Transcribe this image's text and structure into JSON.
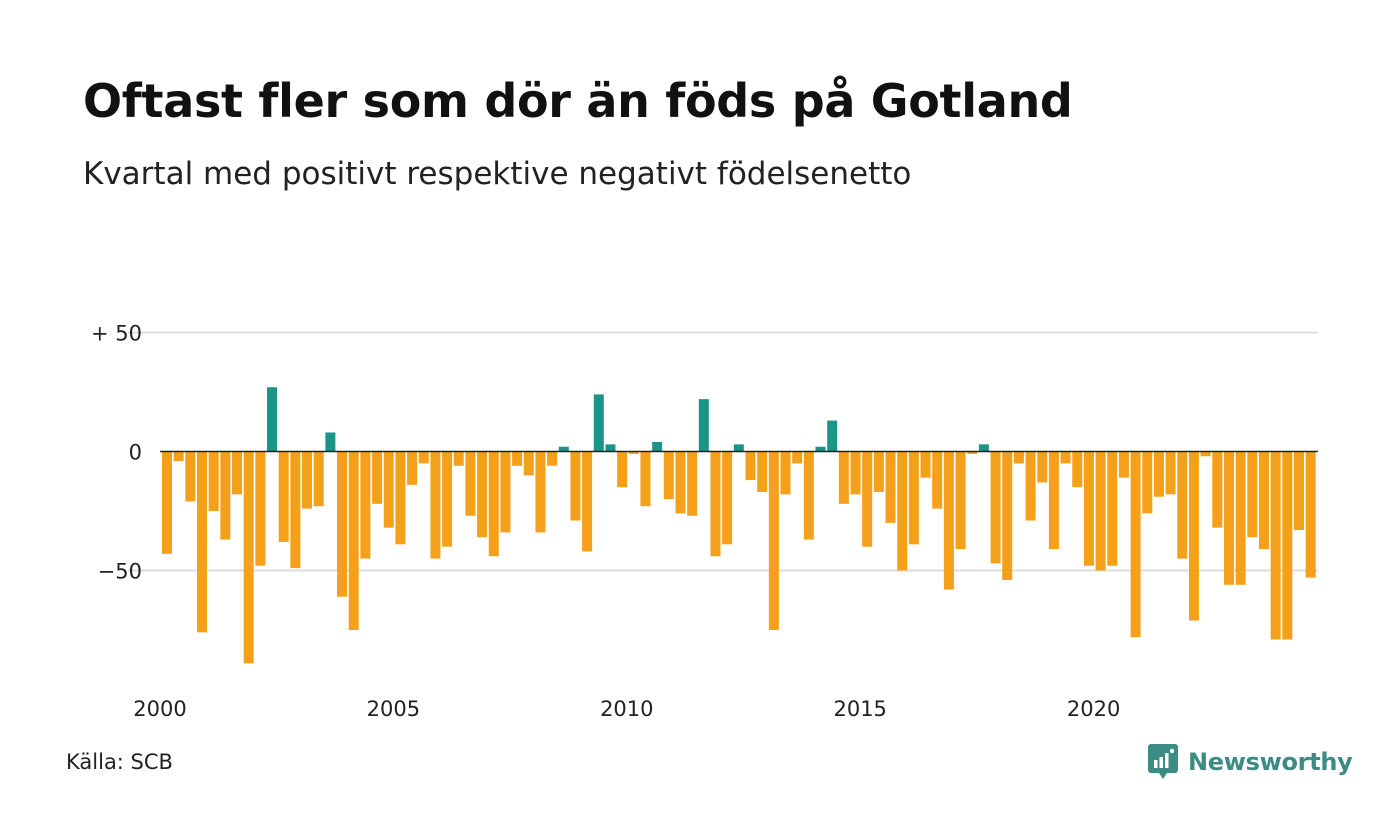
{
  "title": "Oftast fler som dör än föds på Gotland",
  "subtitle": "Kvartal med positivt respektive negativt födelsenetto",
  "source": "Källa: SCB",
  "brand": "Newsworthy",
  "colors": {
    "positive": "#1a9588",
    "negative": "#f5a01a",
    "grid": "#dddddd",
    "zero_line": "#222222",
    "brand": "#3d8c84"
  },
  "chart_data": {
    "type": "bar",
    "x_start_year": 2000,
    "periods_per_year": 4,
    "values": [
      -43,
      -4,
      -21,
      -76,
      -25,
      -37,
      -18,
      -89,
      -48,
      27,
      -38,
      -49,
      -24,
      -23,
      8,
      -61,
      -75,
      -45,
      -22,
      -32,
      -39,
      -14,
      -5,
      -45,
      -40,
      -6,
      -27,
      -36,
      -44,
      -34,
      -6,
      -10,
      -34,
      -6,
      2,
      -29,
      -42,
      24,
      3,
      -15,
      -1,
      -23,
      4,
      -20,
      -26,
      -27,
      22,
      -44,
      -39,
      3,
      -12,
      -17,
      -75,
      -18,
      -5,
      -37,
      2,
      13,
      -22,
      -18,
      -40,
      -17,
      -30,
      -50,
      -39,
      -11,
      -24,
      -58,
      -41,
      -1,
      3,
      -47,
      -54,
      -5,
      -29,
      -13,
      -41,
      -5,
      -15,
      -48,
      -50,
      -48,
      -11,
      -78,
      -26,
      -19,
      -18,
      -45,
      -71,
      -2,
      -32,
      -56,
      -56,
      -36,
      -41,
      -79,
      -79,
      -33,
      -53
    ],
    "xticks": [
      "2000",
      "2005",
      "2010",
      "2015",
      "2020"
    ],
    "yticks": [
      "+ 50",
      "0",
      "−50"
    ],
    "ylim": [
      -95,
      50
    ]
  }
}
